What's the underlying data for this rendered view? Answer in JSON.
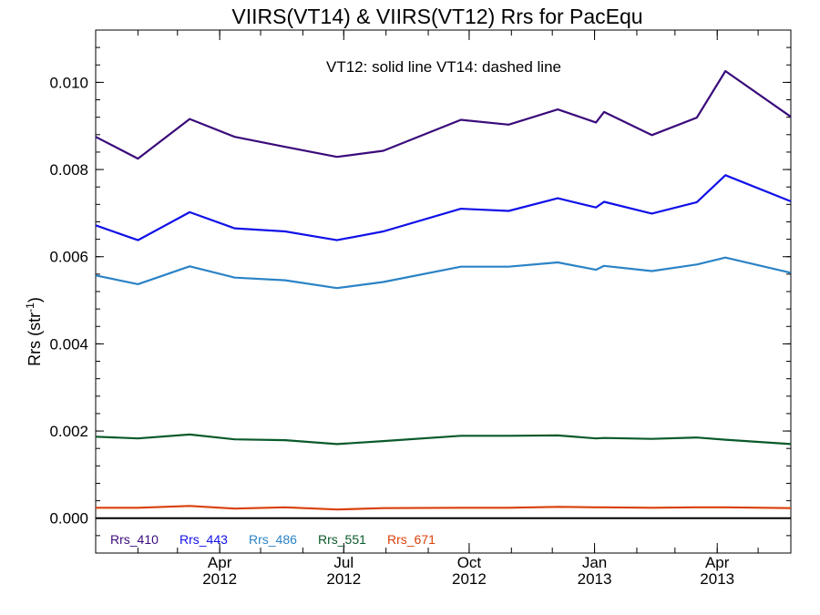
{
  "chart_data": {
    "type": "line",
    "title": "VIIRS(VT14) & VIIRS(VT12)  Rrs for PacEqu",
    "annotation": "VT12: solid line   VT14: dashed line",
    "ylabel_main": "Rrs (str",
    "ylabel_sup": "-1",
    "ylabel_end": ")",
    "ylim": [
      -0.0008,
      0.0112
    ],
    "yticks": [
      "0.000",
      "0.002",
      "0.004",
      "0.006",
      "0.008",
      "0.010"
    ],
    "ytick_values": [
      0,
      0.002,
      0.004,
      0.006,
      0.008,
      0.01
    ],
    "xlim": [
      "2012-01-01",
      "2013-05-25"
    ],
    "xticks": [
      {
        "date": "2012-04-01",
        "month": "Apr",
        "year": "2012"
      },
      {
        "date": "2012-07-01",
        "month": "Jul",
        "year": "2012"
      },
      {
        "date": "2012-10-01",
        "month": "Oct",
        "year": "2012"
      },
      {
        "date": "2013-01-01",
        "month": "Jan",
        "year": "2013"
      },
      {
        "date": "2013-04-01",
        "month": "Apr",
        "year": "2013"
      }
    ],
    "x": [
      "2012-01-01",
      "2012-02-01",
      "2012-03-10",
      "2012-04-12",
      "2012-05-19",
      "2012-06-26",
      "2012-07-30",
      "2012-09-25",
      "2012-10-30",
      "2012-12-05",
      "2013-01-02",
      "2013-01-08",
      "2013-02-12",
      "2013-03-17",
      "2013-04-07",
      "2013-05-25"
    ],
    "series": [
      {
        "name": "Rrs_410",
        "color": "#3a0a7a",
        "values": [
          0.00875,
          0.00825,
          0.00916,
          0.00875,
          0.00852,
          0.00829,
          0.00843,
          0.00914,
          0.00903,
          0.00938,
          0.00908,
          0.00932,
          0.00879,
          0.00919,
          0.01026,
          0.00921
        ]
      },
      {
        "name": "Rrs_443",
        "color": "#1010e8",
        "values": [
          0.00672,
          0.00638,
          0.00702,
          0.00665,
          0.00658,
          0.00638,
          0.00658,
          0.0071,
          0.00705,
          0.00734,
          0.00713,
          0.00726,
          0.00699,
          0.00725,
          0.00787,
          0.00727
        ]
      },
      {
        "name": "Rrs_486",
        "color": "#2b83c6",
        "values": [
          0.00557,
          0.00537,
          0.00578,
          0.00552,
          0.00546,
          0.00528,
          0.00542,
          0.00577,
          0.00577,
          0.00587,
          0.0057,
          0.00579,
          0.00567,
          0.00582,
          0.00598,
          0.00563
        ]
      },
      {
        "name": "Rrs_551",
        "color": "#0a5a2a",
        "values": [
          0.00187,
          0.00183,
          0.00192,
          0.00181,
          0.00179,
          0.0017,
          0.00177,
          0.00189,
          0.00189,
          0.0019,
          0.00183,
          0.00184,
          0.00182,
          0.00185,
          0.0018,
          0.0017
        ]
      },
      {
        "name": "Rrs_671",
        "color": "#d9400a",
        "values": [
          0.00024,
          0.00024,
          0.00028,
          0.00022,
          0.00025,
          0.0002,
          0.00023,
          0.00024,
          0.00024,
          0.00026,
          0.00025,
          0.00025,
          0.00024,
          0.00025,
          0.00025,
          0.00023
        ]
      }
    ]
  }
}
